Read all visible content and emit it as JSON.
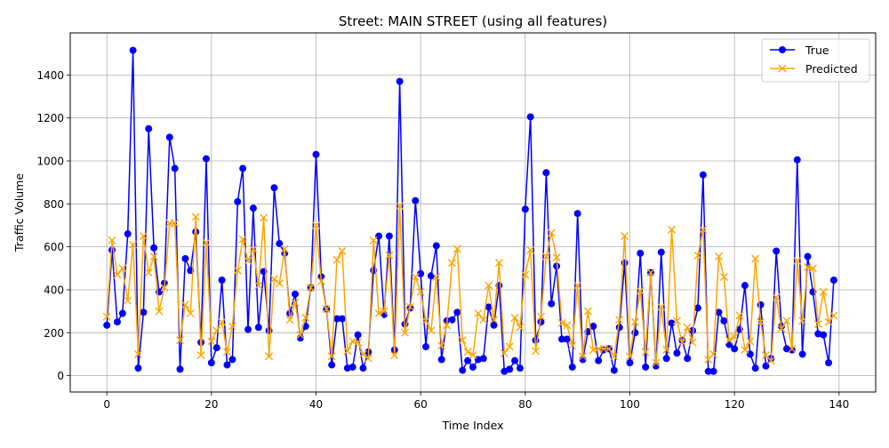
{
  "chart_data": {
    "type": "line",
    "title": "Street: MAIN STREET (using all features)",
    "xlabel": "Time Index",
    "ylabel": "Traffic Volume",
    "xlim": [
      -7,
      147
    ],
    "ylim": [
      -76,
      1596
    ],
    "xticks": [
      0,
      20,
      40,
      60,
      80,
      100,
      120,
      140
    ],
    "yticks": [
      0,
      200,
      400,
      600,
      800,
      1000,
      1200,
      1400
    ],
    "grid": true,
    "legend_position": "top-right",
    "x": [
      0,
      1,
      2,
      3,
      4,
      5,
      6,
      7,
      8,
      9,
      10,
      11,
      12,
      13,
      14,
      15,
      16,
      17,
      18,
      19,
      20,
      21,
      22,
      23,
      24,
      25,
      26,
      27,
      28,
      29,
      30,
      31,
      32,
      33,
      34,
      35,
      36,
      37,
      38,
      39,
      40,
      41,
      42,
      43,
      44,
      45,
      46,
      47,
      48,
      49,
      50,
      51,
      52,
      53,
      54,
      55,
      56,
      57,
      58,
      59,
      60,
      61,
      62,
      63,
      64,
      65,
      66,
      67,
      68,
      69,
      70,
      71,
      72,
      73,
      74,
      75,
      76,
      77,
      78,
      79,
      80,
      81,
      82,
      83,
      84,
      85,
      86,
      87,
      88,
      89,
      90,
      91,
      92,
      93,
      94,
      95,
      96,
      97,
      98,
      99,
      100,
      101,
      102,
      103,
      104,
      105,
      106,
      107,
      108,
      109,
      110,
      111,
      112,
      113,
      114,
      115,
      116,
      117,
      118,
      119,
      120,
      121,
      122,
      123,
      124,
      125,
      126,
      127,
      128,
      129,
      130,
      131,
      132,
      133,
      134,
      135,
      136,
      137,
      138,
      139
    ],
    "series": [
      {
        "name": "True",
        "color": "#0000ff",
        "marker": "circle",
        "values": [
          235,
          585,
          250,
          290,
          660,
          1515,
          35,
          295,
          1150,
          595,
          390,
          430,
          1110,
          965,
          30,
          545,
          490,
          670,
          155,
          1010,
          60,
          130,
          445,
          50,
          75,
          810,
          965,
          215,
          780,
          225,
          485,
          210,
          875,
          615,
          570,
          290,
          380,
          175,
          230,
          410,
          1030,
          460,
          310,
          50,
          265,
          265,
          35,
          40,
          190,
          35,
          110,
          490,
          650,
          285,
          650,
          120,
          1370,
          240,
          315,
          815,
          475,
          135,
          465,
          605,
          75,
          255,
          260,
          295,
          25,
          70,
          40,
          75,
          80,
          320,
          235,
          420,
          20,
          30,
          70,
          35,
          775,
          1205,
          165,
          250,
          945,
          335,
          510,
          170,
          170,
          40,
          755,
          75,
          205,
          230,
          70,
          120,
          125,
          25,
          225,
          525,
          60,
          200,
          570,
          40,
          480,
          45,
          575,
          80,
          245,
          105,
          165,
          80,
          210,
          315,
          935,
          20,
          20,
          295,
          255,
          145,
          125,
          215,
          420,
          100,
          35,
          330,
          45,
          80,
          580,
          230,
          125,
          120,
          1005,
          100,
          555,
          390,
          195,
          190,
          60,
          445
        ]
      },
      {
        "name": "Predicted",
        "color": "#ffa500",
        "marker": "x",
        "values": [
          275,
          630,
          470,
          500,
          350,
          610,
          100,
          650,
          480,
          555,
          300,
          410,
          710,
          710,
          165,
          330,
          290,
          740,
          95,
          620,
          160,
          210,
          250,
          110,
          230,
          490,
          635,
          535,
          590,
          420,
          735,
          90,
          450,
          430,
          590,
          260,
          340,
          190,
          270,
          410,
          700,
          440,
          310,
          90,
          540,
          580,
          115,
          160,
          155,
          100,
          80,
          630,
          290,
          300,
          560,
          95,
          790,
          200,
          320,
          460,
          390,
          255,
          210,
          460,
          140,
          235,
          525,
          590,
          165,
          110,
          95,
          290,
          260,
          420,
          260,
          525,
          105,
          135,
          270,
          225,
          470,
          585,
          115,
          275,
          555,
          665,
          550,
          245,
          235,
          140,
          420,
          90,
          300,
          120,
          125,
          125,
          125,
          90,
          260,
          650,
          90,
          250,
          395,
          110,
          480,
          60,
          320,
          120,
          680,
          255,
          155,
          225,
          155,
          560,
          680,
          75,
          100,
          555,
          460,
          165,
          180,
          280,
          120,
          160,
          545,
          250,
          95,
          70,
          365,
          220,
          255,
          125,
          535,
          255,
          505,
          500,
          240,
          390,
          250,
          280
        ]
      }
    ]
  }
}
